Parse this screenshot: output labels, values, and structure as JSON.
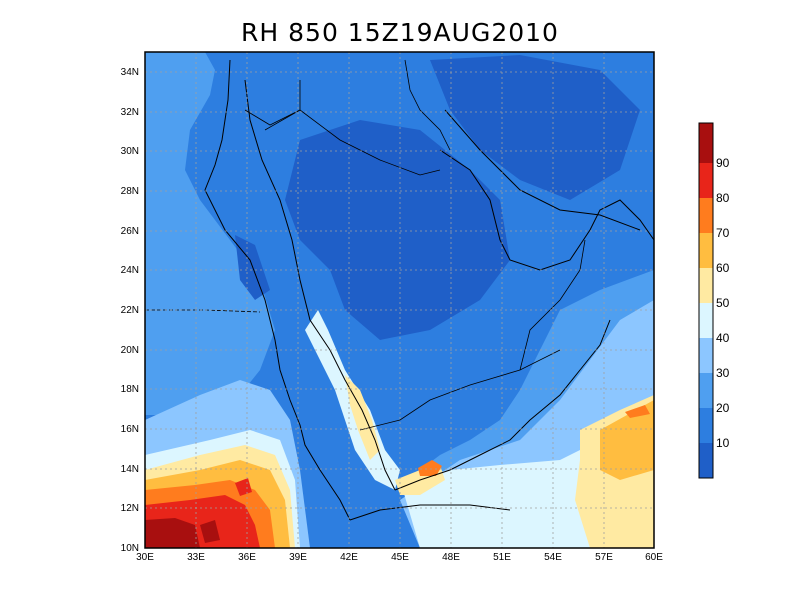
{
  "title": "RH 850 15Z19AUG2010",
  "chart_data": {
    "type": "heatmap",
    "title": "RH 850 15Z19AUG2010",
    "variable": "RH",
    "level": "850",
    "time": "15Z19AUG2010",
    "x_ticks": [
      "30E",
      "33E",
      "36E",
      "39E",
      "42E",
      "45E",
      "48E",
      "51E",
      "54E",
      "57E",
      "60E"
    ],
    "y_ticks": [
      "10N",
      "12N",
      "14N",
      "16N",
      "18N",
      "20N",
      "22N",
      "24N",
      "26N",
      "28N",
      "30N",
      "32N",
      "34N"
    ],
    "xlim": [
      30,
      60
    ],
    "ylim": [
      10,
      35
    ],
    "grid": true,
    "colorbar_levels": [
      "10",
      "20",
      "30",
      "40",
      "50",
      "60",
      "70",
      "80",
      "90"
    ],
    "colorbar_colors": [
      "#1f5fc8",
      "#2d7ee0",
      "#4f9ff0",
      "#8cc6ff",
      "#dcf6ff",
      "#ffeaa2",
      "#ffbd40",
      "#ff7c1e",
      "#e8251a",
      "#a80f0f"
    ]
  }
}
